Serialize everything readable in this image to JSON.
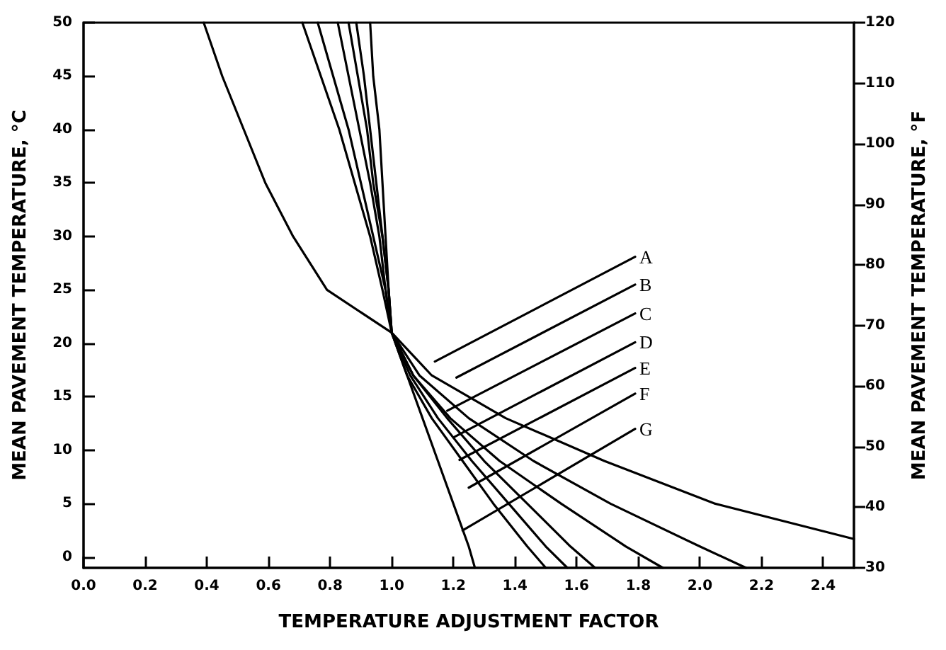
{
  "chart_data": {
    "type": "line",
    "xlabel": "TEMPERATURE ADJUSTMENT FACTOR",
    "ylabel": "MEAN PAVEMENT TEMPERATURE, °C",
    "y2label": "MEAN PAVEMENT TEMPERATURE, °F",
    "xlim": [
      0,
      2.5
    ],
    "ylim": [
      -1,
      50
    ],
    "y2lim": [
      30,
      120
    ],
    "xticks": [
      {
        "value": 0,
        "label": "0.0"
      },
      {
        "value": 0.2,
        "label": "0.2"
      },
      {
        "value": 0.4,
        "label": "0.4"
      },
      {
        "value": 0.6,
        "label": "0.6"
      },
      {
        "value": 0.8,
        "label": "0.8"
      },
      {
        "value": 1,
        "label": "1.0"
      },
      {
        "value": 1.2,
        "label": "1.2"
      },
      {
        "value": 1.4,
        "label": "1.4"
      },
      {
        "value": 1.6,
        "label": "1.6"
      },
      {
        "value": 1.8,
        "label": "1.8"
      },
      {
        "value": 2,
        "label": "2.0"
      },
      {
        "value": 2.2,
        "label": "2.2"
      },
      {
        "value": 2.4,
        "label": "2.4"
      }
    ],
    "yticks": [
      0,
      5,
      10,
      15,
      20,
      25,
      30,
      35,
      40,
      45,
      50
    ],
    "y2ticks": [
      30,
      40,
      50,
      60,
      70,
      80,
      90,
      100,
      110,
      120
    ],
    "grid": false,
    "legend": false,
    "marker": "none",
    "line_style": "solid",
    "series": [
      {
        "color": "#000000",
        "x": [
          0.39,
          0.45,
          0.52,
          0.59,
          0.68,
          0.79,
          1.0,
          1.13,
          1.37,
          1.69,
          2.05,
          2.5
        ],
        "values": [
          50,
          45,
          40,
          35,
          30,
          25,
          21,
          17,
          13,
          9,
          5,
          1.7
        ]
      },
      {
        "color": "#000000",
        "x": [
          0.71,
          0.77,
          0.83,
          0.88,
          0.93,
          0.97,
          1.0,
          1.09,
          1.25,
          1.46,
          1.71,
          2.0,
          2.15
        ],
        "values": [
          50,
          45,
          40,
          35,
          30,
          25,
          21,
          17,
          13,
          9,
          5,
          1,
          -1
        ]
      },
      {
        "color": "#000000",
        "x": [
          0.76,
          0.81,
          0.86,
          0.9,
          0.94,
          0.98,
          1.0,
          1.07,
          1.19,
          1.35,
          1.55,
          1.76,
          1.88
        ],
        "values": [
          50,
          45,
          40,
          35,
          30,
          25,
          21,
          17,
          13,
          9,
          5,
          1,
          -1
        ]
      },
      {
        "color": "#000000",
        "x": [
          0.825,
          0.86,
          0.895,
          0.93,
          0.96,
          0.98,
          1.0,
          1.07,
          1.18,
          1.3,
          1.44,
          1.58,
          1.66
        ],
        "values": [
          50,
          45,
          40,
          35,
          30,
          25,
          21,
          17,
          13,
          9,
          5,
          1,
          -1
        ]
      },
      {
        "color": "#000000",
        "x": [
          0.86,
          0.89,
          0.92,
          0.94,
          0.97,
          0.99,
          1.0,
          1.06,
          1.15,
          1.26,
          1.38,
          1.5,
          1.57
        ],
        "values": [
          50,
          45,
          40,
          35,
          30,
          25,
          21,
          17,
          13,
          9,
          5,
          1,
          -1
        ]
      },
      {
        "color": "#000000",
        "x": [
          0.885,
          0.91,
          0.93,
          0.95,
          0.97,
          0.99,
          1.0,
          1.05,
          1.13,
          1.23,
          1.33,
          1.44,
          1.5
        ],
        "values": [
          50,
          45,
          40,
          35,
          30,
          25,
          21,
          17,
          13,
          9,
          5,
          1,
          -1
        ]
      },
      {
        "color": "#000000",
        "x": [
          0.93,
          0.94,
          0.96,
          0.97,
          0.98,
          0.99,
          1.0,
          1.05,
          1.1,
          1.15,
          1.2,
          1.25,
          1.27
        ],
        "values": [
          50,
          45,
          40,
          35,
          30,
          25,
          21,
          17,
          13,
          9,
          5,
          1,
          -1
        ]
      },
      {
        "name": "A",
        "color": "#000000",
        "x": [
          1.14,
          1.79
        ],
        "values": [
          18.3,
          28.1
        ]
      },
      {
        "name": "B",
        "color": "#000000",
        "x": [
          1.21,
          1.79
        ],
        "values": [
          16.8,
          25.5
        ]
      },
      {
        "name": "C",
        "color": "#000000",
        "x": [
          1.18,
          1.79
        ],
        "values": [
          13.7,
          22.8
        ]
      },
      {
        "name": "D",
        "color": "#000000",
        "x": [
          1.2,
          1.79
        ],
        "values": [
          11.2,
          20.1
        ]
      },
      {
        "name": "E",
        "color": "#000000",
        "x": [
          1.22,
          1.79
        ],
        "values": [
          9.1,
          17.7
        ]
      },
      {
        "name": "F",
        "color": "#000000",
        "x": [
          1.25,
          1.79
        ],
        "values": [
          6.5,
          15.3
        ]
      },
      {
        "name": "G",
        "color": "#000000",
        "x": [
          1.23,
          1.79
        ],
        "values": [
          2.5,
          12.0
        ]
      }
    ]
  }
}
